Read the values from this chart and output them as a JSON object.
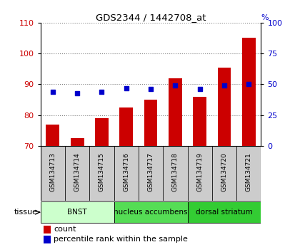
{
  "title": "GDS2344 / 1442708_at",
  "samples": [
    "GSM134713",
    "GSM134714",
    "GSM134715",
    "GSM134716",
    "GSM134717",
    "GSM134718",
    "GSM134719",
    "GSM134720",
    "GSM134721"
  ],
  "counts": [
    77,
    72.5,
    79,
    82.5,
    85,
    92,
    86,
    95.5,
    105
  ],
  "percentiles": [
    44,
    43,
    44,
    47,
    46,
    49,
    46,
    49,
    50
  ],
  "ylim_left": [
    70,
    110
  ],
  "ylim_right": [
    0,
    100
  ],
  "yticks_left": [
    70,
    80,
    90,
    100,
    110
  ],
  "yticks_right": [
    0,
    25,
    50,
    75,
    100
  ],
  "bar_color": "#cc0000",
  "dot_color": "#0000cc",
  "bar_bottom": 70,
  "groups": [
    {
      "label": "BNST",
      "start": 0,
      "end": 3,
      "color": "#ccffcc"
    },
    {
      "label": "nucleus accumbens",
      "start": 3,
      "end": 6,
      "color": "#55dd55"
    },
    {
      "label": "dorsal striatum",
      "start": 6,
      "end": 9,
      "color": "#33cc33"
    }
  ],
  "tick_bg_color": "#cccccc",
  "tissue_label": "tissue",
  "legend_count_label": "count",
  "legend_pct_label": "percentile rank within the sample",
  "bg_color": "#ffffff",
  "tick_label_color_left": "#cc0000",
  "tick_label_color_right": "#0000cc"
}
